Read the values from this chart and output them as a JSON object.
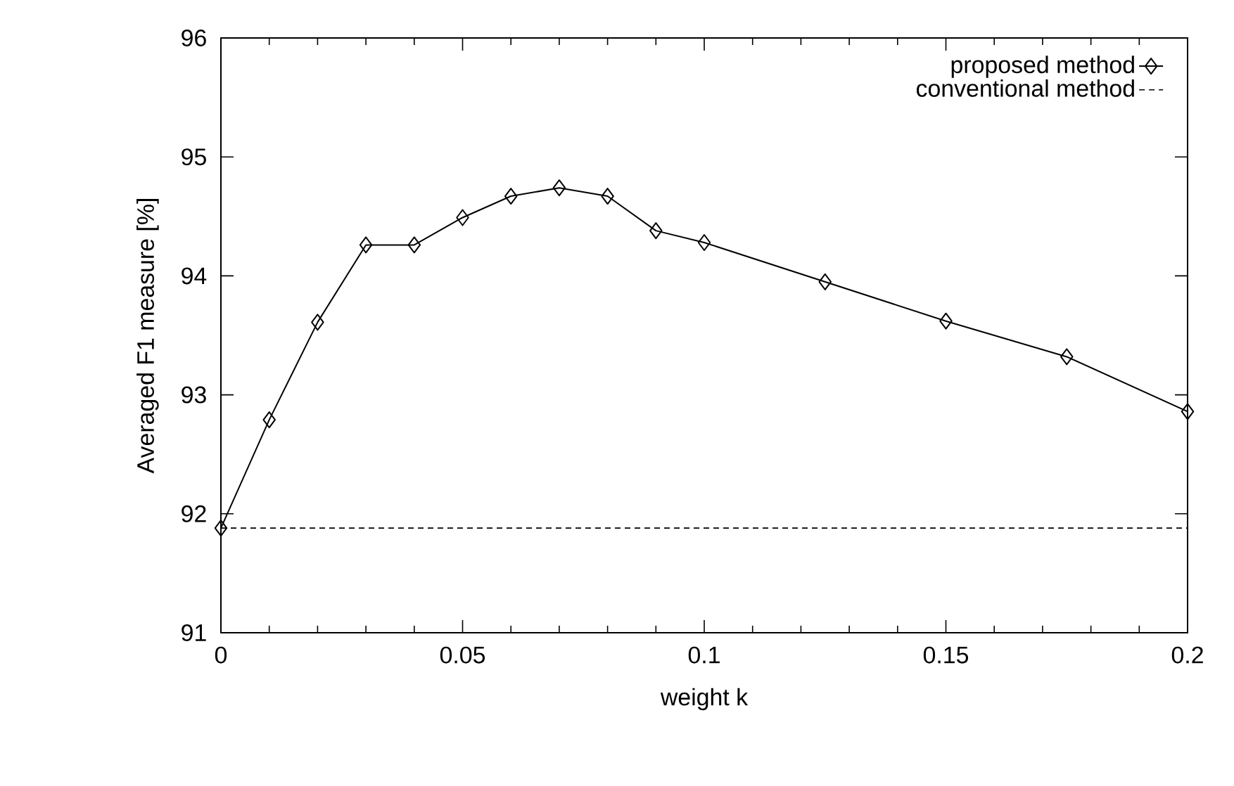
{
  "chart_data": {
    "type": "line",
    "xlabel": "weight k",
    "ylabel": "Averaged F1 measure [%]",
    "x": [
      0,
      0.01,
      0.02,
      0.03,
      0.04,
      0.05,
      0.06,
      0.07,
      0.08,
      0.09,
      0.1,
      0.125,
      0.15,
      0.175,
      0.2
    ],
    "series": [
      {
        "name": "proposed method",
        "color": "#000000",
        "values": [
          91.88,
          92.79,
          93.61,
          94.26,
          94.26,
          94.49,
          94.67,
          94.74,
          94.67,
          94.38,
          94.28,
          93.95,
          93.62,
          93.32,
          92.86
        ]
      }
    ],
    "ref_lines": [
      {
        "axis": "y",
        "value": 91.88,
        "label": "conventional method",
        "color": "#000000",
        "line_style": "dashed"
      }
    ],
    "xlim": [
      0,
      0.2
    ],
    "ylim": [
      91,
      96
    ],
    "xticks": [
      0,
      {
        "value": 0.01,
        "label": null
      },
      {
        "value": 0.02,
        "label": null
      },
      {
        "value": 0.03,
        "label": null
      },
      {
        "value": 0.04,
        "label": null
      },
      0.05,
      {
        "value": 0.06,
        "label": null
      },
      {
        "value": 0.07,
        "label": null
      },
      {
        "value": 0.08,
        "label": null
      },
      {
        "value": 0.09,
        "label": null
      },
      0.1,
      {
        "value": 0.11,
        "label": null
      },
      {
        "value": 0.12,
        "label": null
      },
      {
        "value": 0.13,
        "label": null
      },
      {
        "value": 0.14,
        "label": null
      },
      0.15,
      {
        "value": 0.16,
        "label": null
      },
      {
        "value": 0.17,
        "label": null
      },
      {
        "value": 0.18,
        "label": null
      },
      {
        "value": 0.19,
        "label": null
      },
      0.2
    ],
    "yticks": [
      91,
      92,
      93,
      94,
      95,
      96
    ],
    "legend": "top right",
    "marker": "diamond",
    "line_style": "solid"
  }
}
